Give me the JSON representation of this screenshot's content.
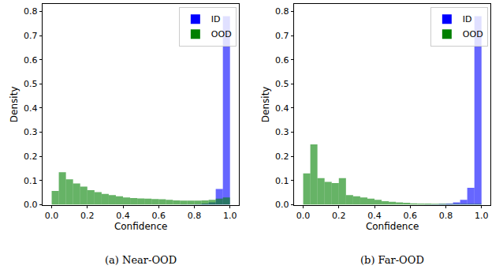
{
  "chart_data": [
    {
      "type": "histogram",
      "title": "(a) Near-OOD",
      "x_label": "Confidence",
      "y_label": "Density",
      "bins": [
        0,
        0.04,
        0.08,
        0.12,
        0.16,
        0.2,
        0.24,
        0.28,
        0.32,
        0.36,
        0.4,
        0.44,
        0.48,
        0.52,
        0.56,
        0.6,
        0.64,
        0.68,
        0.72,
        0.76,
        0.8,
        0.84,
        0.88,
        0.92,
        0.96,
        1.0
      ],
      "series": [
        {
          "name": "ID",
          "color": "#0000ff",
          "values": [
            0,
            0,
            0,
            0,
            0,
            0,
            0,
            0,
            0,
            0,
            0,
            0,
            0,
            0,
            0,
            0,
            0,
            0,
            0.001,
            0.001,
            0.002,
            0.005,
            0.01,
            0.065,
            0.78
          ]
        },
        {
          "name": "OOD",
          "color": "#008000",
          "values": [
            0.057,
            0.135,
            0.105,
            0.088,
            0.075,
            0.06,
            0.052,
            0.045,
            0.04,
            0.035,
            0.03,
            0.028,
            0.026,
            0.025,
            0.024,
            0.023,
            0.02,
            0.018,
            0.017,
            0.017,
            0.017,
            0.018,
            0.02,
            0.025,
            0.03
          ]
        }
      ],
      "xlim": [
        -0.05,
        1.05
      ],
      "ylim": [
        0,
        0.83
      ],
      "xticks": [
        {
          "value": 0,
          "label": "0.0"
        },
        0.2,
        0.4,
        0.6,
        0.8,
        {
          "value": 1,
          "label": "1.0"
        }
      ],
      "yticks": [
        {
          "value": 0,
          "label": "0.0"
        },
        0.1,
        0.2,
        0.3,
        0.4,
        0.5,
        0.6,
        0.7,
        0.8
      ],
      "legend": "upper right",
      "grid": false
    },
    {
      "type": "histogram",
      "title": "(b) Far-OOD",
      "x_label": "Confidence",
      "y_label": "Density",
      "bins": [
        0,
        0.04,
        0.08,
        0.12,
        0.16,
        0.2,
        0.24,
        0.28,
        0.32,
        0.36,
        0.4,
        0.44,
        0.48,
        0.52,
        0.56,
        0.6,
        0.64,
        0.68,
        0.72,
        0.76,
        0.8,
        0.84,
        0.88,
        0.92,
        0.96,
        1.0
      ],
      "series": [
        {
          "name": "ID",
          "color": "#0000ff",
          "values": [
            0,
            0,
            0,
            0,
            0,
            0,
            0,
            0,
            0,
            0,
            0,
            0,
            0,
            0,
            0,
            0,
            0,
            0.001,
            0.002,
            0.003,
            0.005,
            0.01,
            0.02,
            0.07,
            0.78
          ]
        },
        {
          "name": "OOD",
          "color": "#008000",
          "values": [
            0.13,
            0.25,
            0.11,
            0.095,
            0.09,
            0.11,
            0.04,
            0.035,
            0.03,
            0.025,
            0.02,
            0.015,
            0.012,
            0.01,
            0.008,
            0.006,
            0.005,
            0.005,
            0.004,
            0.004,
            0.003,
            0.003,
            0.003,
            0.003,
            0.003
          ]
        }
      ],
      "xlim": [
        -0.05,
        1.05
      ],
      "ylim": [
        0,
        0.83
      ],
      "xticks": [
        {
          "value": 0,
          "label": "0.0"
        },
        0.2,
        0.4,
        0.6,
        0.8,
        {
          "value": 1,
          "label": "1.0"
        }
      ],
      "yticks": [
        {
          "value": 0,
          "label": "0.0"
        },
        0.1,
        0.2,
        0.3,
        0.4,
        0.5,
        0.6,
        0.7,
        0.8
      ],
      "legend": "upper right",
      "grid": false
    }
  ]
}
